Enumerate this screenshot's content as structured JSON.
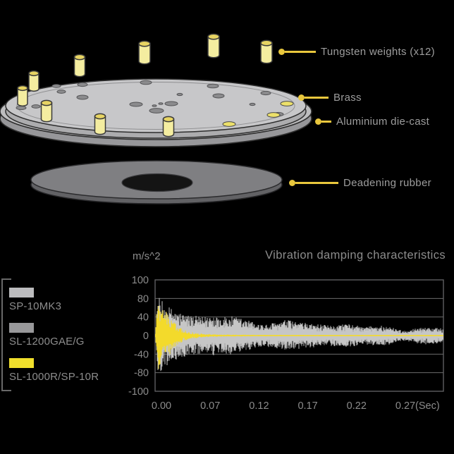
{
  "colors": {
    "background": "#000000",
    "accent_gold": "#e9c73d",
    "accent_yellow": "#f0df2c",
    "label_gray": "#9d9d9d",
    "axis_gray": "#7f7f7f",
    "brass_top": "#c7c7c9",
    "aluminium": "#bdbdbf",
    "rubber": "#7f7f82",
    "tungsten_fill": "#f4eda0"
  },
  "diagram": {
    "callouts": [
      {
        "label": "Tungsten weights (x12)"
      },
      {
        "label": "Brass"
      },
      {
        "label": "Aluminium die-cast"
      },
      {
        "label": "Deadening rubber"
      }
    ]
  },
  "legend": {
    "items": [
      {
        "label": "SP-10MK3",
        "color": "#bcbcbe"
      },
      {
        "label": "SL-1200GAE/G",
        "color": "#98989a"
      },
      {
        "label": "SL-1000R/SP-10R",
        "color": "#f0df2c"
      }
    ]
  },
  "chart_data": {
    "type": "line",
    "subtype": "damped-vibration-waveform",
    "title": "Vibration damping characteristics",
    "ylabel": "m/s^2",
    "yticks": [
      100,
      80,
      40,
      0,
      -40,
      -80,
      -100
    ],
    "ytick_layout": "evenly spaced (non-linear scale)",
    "xticks": [
      "0.00",
      "0.07",
      "0.12",
      "0.17",
      "0.22",
      "0.27"
    ],
    "x_unit": "(Sec)",
    "grid": "horizontal",
    "legend_position": "left",
    "series": [
      {
        "name": "SP-10MK3",
        "color": "#c6c6c6",
        "scale": 1.0,
        "seed": 12345,
        "envelope": [
          [
            0,
            5
          ],
          [
            0.004,
            30
          ],
          [
            0.008,
            88
          ],
          [
            0.015,
            82
          ],
          [
            0.03,
            70
          ],
          [
            0.05,
            62
          ],
          [
            0.07,
            55
          ],
          [
            0.1,
            48
          ],
          [
            0.13,
            44
          ],
          [
            0.16,
            40
          ],
          [
            0.19,
            43
          ],
          [
            0.21,
            46
          ],
          [
            0.24,
            40
          ],
          [
            0.27,
            42
          ],
          [
            0.3,
            38
          ],
          [
            0.33,
            32
          ],
          [
            0.36,
            26
          ],
          [
            0.39,
            24
          ],
          [
            0.42,
            30
          ],
          [
            0.45,
            34
          ],
          [
            0.48,
            32
          ],
          [
            0.51,
            28
          ],
          [
            0.54,
            26
          ],
          [
            0.57,
            24
          ],
          [
            0.6,
            22
          ],
          [
            0.63,
            24
          ],
          [
            0.66,
            26
          ],
          [
            0.69,
            23
          ],
          [
            0.72,
            19
          ],
          [
            0.75,
            21
          ],
          [
            0.78,
            23
          ],
          [
            0.81,
            20
          ],
          [
            0.84,
            14
          ],
          [
            0.86,
            11
          ],
          [
            0.88,
            13
          ],
          [
            0.91,
            17
          ],
          [
            0.94,
            19
          ],
          [
            0.97,
            17
          ],
          [
            1,
            15
          ]
        ]
      },
      {
        "name": "SL-1200GAE/G",
        "color": "#9e9e9e",
        "scale": 0.9,
        "seed": 67890,
        "envelope": [
          [
            0,
            5
          ],
          [
            0.004,
            30
          ],
          [
            0.008,
            88
          ],
          [
            0.015,
            82
          ],
          [
            0.03,
            70
          ],
          [
            0.05,
            62
          ],
          [
            0.07,
            55
          ],
          [
            0.1,
            48
          ],
          [
            0.13,
            44
          ],
          [
            0.16,
            40
          ],
          [
            0.19,
            43
          ],
          [
            0.21,
            46
          ],
          [
            0.24,
            40
          ],
          [
            0.27,
            42
          ],
          [
            0.3,
            38
          ],
          [
            0.33,
            32
          ],
          [
            0.36,
            26
          ],
          [
            0.39,
            24
          ],
          [
            0.42,
            30
          ],
          [
            0.45,
            34
          ],
          [
            0.48,
            32
          ],
          [
            0.51,
            28
          ],
          [
            0.54,
            26
          ],
          [
            0.57,
            24
          ],
          [
            0.6,
            22
          ],
          [
            0.63,
            24
          ],
          [
            0.66,
            26
          ],
          [
            0.69,
            23
          ],
          [
            0.72,
            19
          ],
          [
            0.75,
            21
          ],
          [
            0.78,
            23
          ],
          [
            0.81,
            20
          ],
          [
            0.84,
            14
          ],
          [
            0.86,
            11
          ],
          [
            0.88,
            13
          ],
          [
            0.91,
            17
          ],
          [
            0.94,
            19
          ],
          [
            0.97,
            17
          ],
          [
            1,
            15
          ]
        ]
      },
      {
        "name": "SL-1000R/SP-10R",
        "color": "#f3da2b",
        "scale": 1.0,
        "seed": 24680,
        "envelope": [
          [
            0,
            4
          ],
          [
            0.005,
            55
          ],
          [
            0.01,
            78
          ],
          [
            0.02,
            72
          ],
          [
            0.03,
            62
          ],
          [
            0.045,
            48
          ],
          [
            0.06,
            34
          ],
          [
            0.08,
            20
          ],
          [
            0.1,
            12
          ],
          [
            0.13,
            7
          ],
          [
            0.16,
            4.5
          ],
          [
            0.2,
            3
          ],
          [
            0.25,
            2.2
          ],
          [
            0.3,
            1.8
          ],
          [
            0.4,
            1.5
          ],
          [
            0.6,
            1.4
          ],
          [
            0.8,
            1.4
          ],
          [
            1,
            1.4
          ]
        ]
      }
    ]
  }
}
